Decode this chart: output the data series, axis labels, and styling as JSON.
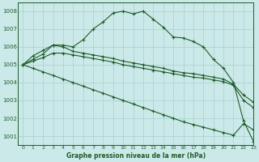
{
  "title": "Graphe pression niveau de la mer (hPa)",
  "background_color": "#cce9e9",
  "grid_color": "#aad4d4",
  "line_color": "#1e5c28",
  "xlim": [
    -0.5,
    23
  ],
  "ylim": [
    1000.5,
    1008.5
  ],
  "yticks": [
    1001,
    1002,
    1003,
    1004,
    1005,
    1006,
    1007,
    1008
  ],
  "xticks": [
    0,
    1,
    2,
    3,
    4,
    5,
    6,
    7,
    8,
    9,
    10,
    11,
    12,
    13,
    14,
    15,
    16,
    17,
    18,
    19,
    20,
    21,
    22,
    23
  ],
  "series": [
    [
      1005.0,
      1005.5,
      1005.8,
      1006.1,
      1006.1,
      1006.0,
      1006.4,
      1007.0,
      1007.4,
      1007.9,
      1008.0,
      1007.85,
      1008.0,
      1007.55,
      1007.1,
      1006.55,
      1006.5,
      1006.3,
      1006.0,
      1005.3,
      1004.8,
      1004.0,
      1001.85,
      1000.7
    ],
    [
      1005.0,
      1005.3,
      1005.6,
      1006.1,
      1006.0,
      1005.75,
      1005.65,
      1005.55,
      1005.45,
      1005.35,
      1005.2,
      1005.1,
      1005.0,
      1004.9,
      1004.8,
      1004.65,
      1004.55,
      1004.5,
      1004.4,
      1004.3,
      1004.2,
      1003.9,
      1003.3,
      1002.9
    ],
    [
      1005.0,
      1005.2,
      1005.4,
      1005.65,
      1005.65,
      1005.55,
      1005.45,
      1005.35,
      1005.25,
      1005.15,
      1005.0,
      1004.9,
      1004.8,
      1004.7,
      1004.6,
      1004.5,
      1004.4,
      1004.3,
      1004.25,
      1004.15,
      1004.05,
      1003.85,
      1003.0,
      1002.6
    ],
    [
      1005.0,
      1004.8,
      1004.6,
      1004.4,
      1004.2,
      1004.0,
      1003.8,
      1003.6,
      1003.4,
      1003.2,
      1003.0,
      1002.8,
      1002.6,
      1002.4,
      1002.2,
      1002.0,
      1001.8,
      1001.65,
      1001.5,
      1001.35,
      1001.2,
      1001.05,
      1001.7,
      1001.35
    ]
  ]
}
